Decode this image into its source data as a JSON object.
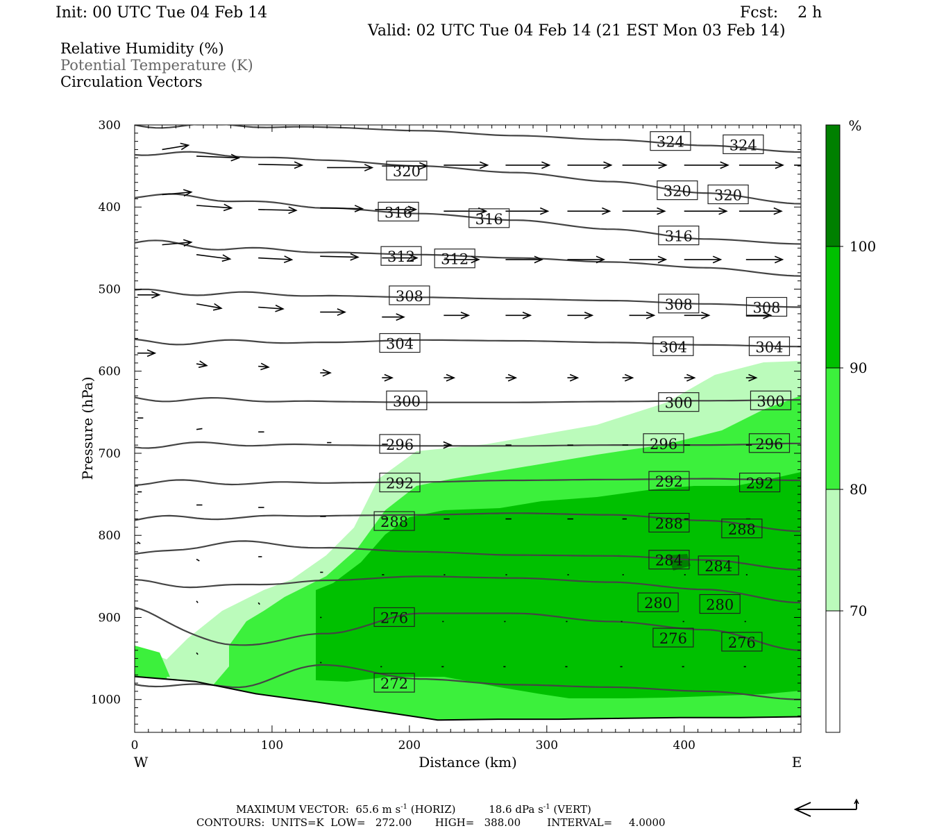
{
  "header": {
    "init": "Init: 00 UTC Tue 04 Feb 14",
    "fcst": "Fcst:    2 h",
    "valid": "Valid: 02 UTC Tue 04 Feb 14 (21 EST Mon 03 Feb 14)"
  },
  "legend": {
    "rh": "Relative Humidity (%)",
    "theta": "Potential Temperature (K)",
    "vectors": "Circulation Vectors"
  },
  "chart_data": {
    "type": "cross-section",
    "xlabel": "Distance (km)",
    "ylabel": "Pressure (hPa)",
    "xlim": [
      0,
      485
    ],
    "ylim": [
      1040,
      300
    ],
    "x_ticks": [
      0,
      100,
      200,
      300,
      400
    ],
    "y_ticks": [
      300,
      400,
      500,
      600,
      700,
      800,
      900,
      1000
    ],
    "x_ends": {
      "left": "W",
      "right": "E"
    },
    "colorbar": {
      "unit": "%",
      "levels": [
        70,
        80,
        90,
        100
      ],
      "colors": [
        "#ffffff",
        "#bbfbbb",
        "#3cf03c",
        "#00c000",
        "#008000"
      ]
    },
    "theta_contours": [
      {
        "value": 324,
        "p": [
          300,
          301,
          303,
          307,
          313,
          318,
          325,
          333
        ]
      },
      {
        "value": 320,
        "p": [
          333,
          337,
          343,
          350,
          358,
          369,
          383,
          396
        ]
      },
      {
        "value": 316,
        "p": [
          385,
          391,
          401,
          408,
          416,
          427,
          439,
          445
        ]
      },
      {
        "value": 312,
        "p": [
          443,
          450,
          455,
          458,
          462,
          467,
          474,
          484
        ]
      },
      {
        "value": 308,
        "p": [
          504,
          505,
          508,
          510,
          512,
          514,
          518,
          522
        ]
      },
      {
        "value": 304,
        "p": [
          565,
          564,
          565,
          562,
          563,
          565,
          568,
          570
        ]
      },
      {
        "value": 300,
        "p": [
          633,
          635,
          637,
          638,
          638,
          637,
          636,
          635
        ]
      },
      {
        "value": 296,
        "p": [
          690,
          689,
          690,
          691,
          691,
          690,
          690,
          688
        ]
      },
      {
        "value": 292,
        "p": [
          735,
          736,
          736,
          735,
          733,
          732,
          731,
          733
        ]
      },
      {
        "value": 288,
        "p": [
          780,
          778,
          776,
          775,
          773,
          775,
          782,
          795
        ]
      },
      {
        "value": 284,
        "p": [
          825,
          808,
          815,
          820,
          824,
          825,
          830,
          842
        ]
      },
      {
        "value": 280,
        "p": [
          858,
          862,
          855,
          850,
          852,
          857,
          866,
          882
        ]
      },
      {
        "value": 276,
        "p": [
          890,
          935,
          920,
          895,
          895,
          905,
          915,
          940
        ]
      },
      {
        "value": 272,
        "p": [
          980,
          985,
          958,
          975,
          982,
          985,
          990,
          1000
        ]
      }
    ],
    "contour_labels": [
      {
        "value": 324,
        "x": 390,
        "p": 320
      },
      {
        "value": 324,
        "x": 443,
        "p": 324
      },
      {
        "value": 320,
        "x": 198,
        "p": 356
      },
      {
        "value": 320,
        "x": 395,
        "p": 380
      },
      {
        "value": 320,
        "x": 432,
        "p": 385
      },
      {
        "value": 316,
        "x": 192,
        "p": 406
      },
      {
        "value": 316,
        "x": 258,
        "p": 414
      },
      {
        "value": 316,
        "x": 396,
        "p": 435
      },
      {
        "value": 312,
        "x": 194,
        "p": 460
      },
      {
        "value": 312,
        "x": 233,
        "p": 463
      },
      {
        "value": 308,
        "x": 200,
        "p": 508
      },
      {
        "value": 308,
        "x": 396,
        "p": 518
      },
      {
        "value": 308,
        "x": 460,
        "p": 522
      },
      {
        "value": 304,
        "x": 193,
        "p": 566
      },
      {
        "value": 304,
        "x": 392,
        "p": 570
      },
      {
        "value": 304,
        "x": 462,
        "p": 570
      },
      {
        "value": 300,
        "x": 198,
        "p": 636
      },
      {
        "value": 300,
        "x": 396,
        "p": 638
      },
      {
        "value": 300,
        "x": 463,
        "p": 636
      },
      {
        "value": 296,
        "x": 193,
        "p": 689
      },
      {
        "value": 296,
        "x": 385,
        "p": 688
      },
      {
        "value": 296,
        "x": 462,
        "p": 688
      },
      {
        "value": 292,
        "x": 193,
        "p": 736
      },
      {
        "value": 292,
        "x": 389,
        "p": 734
      },
      {
        "value": 292,
        "x": 455,
        "p": 736
      },
      {
        "value": 288,
        "x": 189,
        "p": 783
      },
      {
        "value": 288,
        "x": 389,
        "p": 785
      },
      {
        "value": 288,
        "x": 442,
        "p": 792
      },
      {
        "value": 284,
        "x": 389,
        "p": 830
      },
      {
        "value": 284,
        "x": 425,
        "p": 837
      },
      {
        "value": 280,
        "x": 381,
        "p": 882
      },
      {
        "value": 280,
        "x": 426,
        "p": 884
      },
      {
        "value": 276,
        "x": 189,
        "p": 900
      },
      {
        "value": 276,
        "x": 392,
        "p": 925
      },
      {
        "value": 276,
        "x": 442,
        "p": 930
      },
      {
        "value": 272,
        "x": 189,
        "p": 980
      }
    ],
    "vectors": [
      {
        "x": 20,
        "p": 330,
        "u": 36,
        "w": -5
      },
      {
        "x": 45,
        "p": 338,
        "u": 58,
        "w": 2
      },
      {
        "x": 90,
        "p": 348,
        "u": 60,
        "w": 1
      },
      {
        "x": 140,
        "p": 352,
        "u": 62,
        "w": 0
      },
      {
        "x": 180,
        "p": 350,
        "u": 62,
        "w": 0
      },
      {
        "x": 225,
        "p": 349,
        "u": 60,
        "w": 0
      },
      {
        "x": 270,
        "p": 349,
        "u": 60,
        "w": 0
      },
      {
        "x": 315,
        "p": 349,
        "u": 60,
        "w": 0
      },
      {
        "x": 355,
        "p": 349,
        "u": 60,
        "w": 0
      },
      {
        "x": 400,
        "p": 349,
        "u": 60,
        "w": 0
      },
      {
        "x": 440,
        "p": 349,
        "u": 60,
        "w": 0
      },
      {
        "x": 480,
        "p": 349,
        "u": 40,
        "w": 0
      },
      {
        "x": 20,
        "p": 385,
        "u": 40,
        "w": -3
      },
      {
        "x": 45,
        "p": 398,
        "u": 48,
        "w": 3
      },
      {
        "x": 90,
        "p": 403,
        "u": 52,
        "w": 1
      },
      {
        "x": 135,
        "p": 401,
        "u": 58,
        "w": 1
      },
      {
        "x": 175,
        "p": 403,
        "u": 56,
        "w": 0
      },
      {
        "x": 225,
        "p": 405,
        "u": 58,
        "w": 0
      },
      {
        "x": 270,
        "p": 405,
        "u": 58,
        "w": 0
      },
      {
        "x": 315,
        "p": 405,
        "u": 58,
        "w": 0
      },
      {
        "x": 355,
        "p": 405,
        "u": 58,
        "w": 0
      },
      {
        "x": 400,
        "p": 405,
        "u": 58,
        "w": 0
      },
      {
        "x": 440,
        "p": 405,
        "u": 58,
        "w": 0
      },
      {
        "x": 20,
        "p": 446,
        "u": 40,
        "w": -3
      },
      {
        "x": 45,
        "p": 458,
        "u": 46,
        "w": 5
      },
      {
        "x": 90,
        "p": 462,
        "u": 46,
        "w": 2
      },
      {
        "x": 135,
        "p": 460,
        "u": 52,
        "w": 1
      },
      {
        "x": 180,
        "p": 462,
        "u": 48,
        "w": 0
      },
      {
        "x": 225,
        "p": 464,
        "u": 48,
        "w": 0
      },
      {
        "x": 270,
        "p": 464,
        "u": 50,
        "w": 0
      },
      {
        "x": 315,
        "p": 464,
        "u": 50,
        "w": 0
      },
      {
        "x": 360,
        "p": 464,
        "u": 50,
        "w": 0
      },
      {
        "x": 400,
        "p": 464,
        "u": 50,
        "w": 0
      },
      {
        "x": 445,
        "p": 464,
        "u": 50,
        "w": 0
      },
      {
        "x": 2,
        "p": 507,
        "u": 30,
        "w": 0
      },
      {
        "x": 45,
        "p": 518,
        "u": 34,
        "w": 5
      },
      {
        "x": 90,
        "p": 522,
        "u": 34,
        "w": 2
      },
      {
        "x": 135,
        "p": 528,
        "u": 34,
        "w": 0
      },
      {
        "x": 180,
        "p": 534,
        "u": 30,
        "w": 0
      },
      {
        "x": 225,
        "p": 532,
        "u": 34,
        "w": 0
      },
      {
        "x": 270,
        "p": 532,
        "u": 34,
        "w": 0
      },
      {
        "x": 315,
        "p": 532,
        "u": 34,
        "w": 0
      },
      {
        "x": 360,
        "p": 532,
        "u": 34,
        "w": 0
      },
      {
        "x": 400,
        "p": 532,
        "u": 34,
        "w": 0
      },
      {
        "x": 445,
        "p": 532,
        "u": 34,
        "w": 0
      },
      {
        "x": 2,
        "p": 578,
        "u": 24,
        "w": 0
      },
      {
        "x": 45,
        "p": 591,
        "u": 14,
        "w": 2
      },
      {
        "x": 90,
        "p": 594,
        "u": 14,
        "w": 1
      },
      {
        "x": 135,
        "p": 602,
        "u": 14,
        "w": 0
      },
      {
        "x": 180,
        "p": 608,
        "u": 14,
        "w": 0
      },
      {
        "x": 225,
        "p": 608,
        "u": 14,
        "w": 0
      },
      {
        "x": 270,
        "p": 608,
        "u": 14,
        "w": 0
      },
      {
        "x": 315,
        "p": 608,
        "u": 14,
        "w": 0
      },
      {
        "x": 355,
        "p": 608,
        "u": 14,
        "w": 0
      },
      {
        "x": 400,
        "p": 608,
        "u": 14,
        "w": 0
      },
      {
        "x": 445,
        "p": 608,
        "u": 14,
        "w": 0
      },
      {
        "x": 2,
        "p": 657,
        "u": 8,
        "w": 0
      },
      {
        "x": 45,
        "p": 671,
        "u": 8,
        "w": -1
      },
      {
        "x": 90,
        "p": 674,
        "u": 8,
        "w": 0
      },
      {
        "x": 140,
        "p": 687,
        "u": 6,
        "w": 0
      },
      {
        "x": 180,
        "p": 689,
        "u": 8,
        "w": 0
      },
      {
        "x": 225,
        "p": 690,
        "u": 10,
        "w": 0
      },
      {
        "x": 270,
        "p": 690,
        "u": 8,
        "w": 0
      },
      {
        "x": 315,
        "p": 690,
        "u": 8,
        "w": 0
      },
      {
        "x": 355,
        "p": 690,
        "u": 8,
        "w": 0
      },
      {
        "x": 400,
        "p": 690,
        "u": 8,
        "w": 0
      },
      {
        "x": 445,
        "p": 690,
        "u": 8,
        "w": 0
      },
      {
        "x": 2,
        "p": 747,
        "u": 6,
        "w": 0
      },
      {
        "x": 45,
        "p": 763,
        "u": 8,
        "w": 0
      },
      {
        "x": 90,
        "p": 766,
        "u": 8,
        "w": 0
      },
      {
        "x": 135,
        "p": 777,
        "u": 8,
        "w": 0
      },
      {
        "x": 180,
        "p": 780,
        "u": 8,
        "w": 0
      },
      {
        "x": 225,
        "p": 780,
        "u": 8,
        "w": 0
      },
      {
        "x": 270,
        "p": 780,
        "u": 8,
        "w": 0
      },
      {
        "x": 315,
        "p": 780,
        "u": 8,
        "w": 0
      },
      {
        "x": 355,
        "p": 780,
        "u": 6,
        "w": 0
      },
      {
        "x": 400,
        "p": 780,
        "u": 6,
        "w": 0
      },
      {
        "x": 445,
        "p": 780,
        "u": 6,
        "w": 0
      },
      {
        "x": 2,
        "p": 808,
        "u": 4,
        "w": 2
      },
      {
        "x": 45,
        "p": 829,
        "u": 4,
        "w": 2
      },
      {
        "x": 90,
        "p": 826,
        "u": 5,
        "w": 0
      },
      {
        "x": 135,
        "p": 845,
        "u": 4,
        "w": 0
      },
      {
        "x": 180,
        "p": 848,
        "u": 3,
        "w": 0
      },
      {
        "x": 225,
        "p": 848,
        "u": 2,
        "w": 0
      },
      {
        "x": 270,
        "p": 848,
        "u": 2,
        "w": 0
      },
      {
        "x": 315,
        "p": 848,
        "u": 2,
        "w": 0
      },
      {
        "x": 355,
        "p": 848,
        "u": 2,
        "w": 0
      },
      {
        "x": 400,
        "p": 848,
        "u": 2,
        "w": 0
      },
      {
        "x": 445,
        "p": 848,
        "u": 2,
        "w": 0
      },
      {
        "x": 45,
        "p": 880,
        "u": 2,
        "w": 2
      },
      {
        "x": 90,
        "p": 882,
        "u": 2,
        "w": 2
      },
      {
        "x": 135,
        "p": 900,
        "u": 2,
        "w": 0
      },
      {
        "x": 180,
        "p": 905,
        "u": 2,
        "w": 0
      },
      {
        "x": 225,
        "p": 905,
        "u": -2,
        "w": 0
      },
      {
        "x": 270,
        "p": 905,
        "u": -2,
        "w": 0
      },
      {
        "x": 315,
        "p": 905,
        "u": -2,
        "w": 0
      },
      {
        "x": 355,
        "p": 905,
        "u": -2,
        "w": 0
      },
      {
        "x": 400,
        "p": 905,
        "u": -2,
        "w": 0
      },
      {
        "x": 445,
        "p": 905,
        "u": -2,
        "w": 0
      },
      {
        "x": 45,
        "p": 943,
        "u": 2,
        "w": 2
      },
      {
        "x": 135,
        "p": 955,
        "u": 2,
        "w": 0
      },
      {
        "x": 180,
        "p": 960,
        "u": -2,
        "w": 0
      },
      {
        "x": 225,
        "p": 960,
        "u": -3,
        "w": 0
      },
      {
        "x": 270,
        "p": 960,
        "u": -3,
        "w": 0
      },
      {
        "x": 315,
        "p": 960,
        "u": -3,
        "w": 0
      },
      {
        "x": 355,
        "p": 960,
        "u": -3,
        "w": 0
      },
      {
        "x": 400,
        "p": 960,
        "u": -3,
        "w": 0
      },
      {
        "x": 445,
        "p": 960,
        "u": -3,
        "w": 0
      }
    ],
    "terrain_p": [
      972,
      978,
      993,
      1003,
      1014,
      1025,
      1024,
      1024,
      1023,
      1022,
      1022,
      1021
    ],
    "footer": {
      "max_vector_label": "MAXIMUM VECTOR:",
      "max_horiz": "65.6 m s",
      "max_horiz_unit": "(HORIZ)",
      "max_vert": "18.6 dPa s",
      "max_vert_unit": "(VERT)",
      "exp": "-1",
      "contours": "CONTOURS:  UNITS=K  LOW=   272.00       HIGH=   388.00        INTERVAL=     4.0000"
    }
  }
}
